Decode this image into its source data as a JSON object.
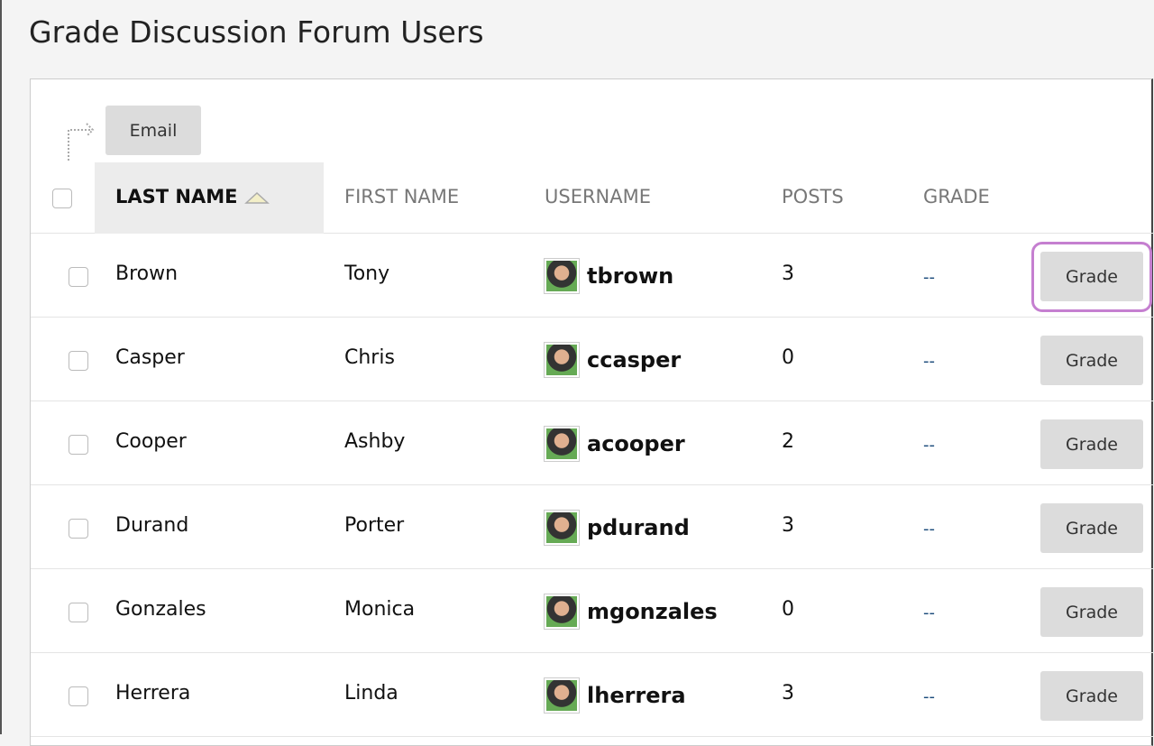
{
  "title": "Grade Discussion Forum Users",
  "toolbar": {
    "email_label": "Email"
  },
  "columns": {
    "last_name": "LAST NAME",
    "first_name": "FIRST NAME",
    "username": "USERNAME",
    "posts": "POSTS",
    "grade": "GRADE"
  },
  "sort": {
    "column": "last_name",
    "direction": "ascending"
  },
  "highlight_color": "#c57fd0",
  "rows": [
    {
      "last": "Brown",
      "first": "Tony",
      "username": "tbrown",
      "posts": "3",
      "grade": "--",
      "button": "Grade"
    },
    {
      "last": "Casper",
      "first": "Chris",
      "username": "ccasper",
      "posts": "0",
      "grade": "--",
      "button": "Grade"
    },
    {
      "last": "Cooper",
      "first": "Ashby",
      "username": "acooper",
      "posts": "2",
      "grade": "--",
      "button": "Grade"
    },
    {
      "last": "Durand",
      "first": "Porter",
      "username": "pdurand",
      "posts": "3",
      "grade": "--",
      "button": "Grade"
    },
    {
      "last": "Gonzales",
      "first": "Monica",
      "username": "mgonzales",
      "posts": "0",
      "grade": "--",
      "button": "Grade"
    },
    {
      "last": "Herrera",
      "first": "Linda",
      "username": "lherrera",
      "posts": "3",
      "grade": "--",
      "button": "Grade"
    }
  ]
}
